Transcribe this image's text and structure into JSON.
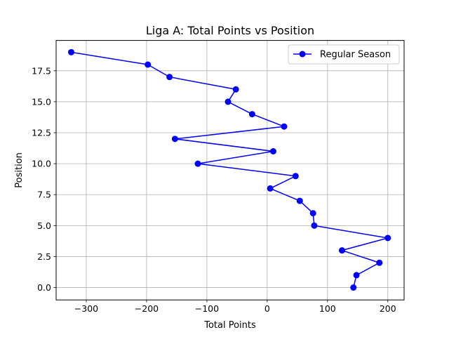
{
  "chart_data": {
    "type": "line",
    "title": "Liga A: Total Points vs Position",
    "xlabel": "Total Points",
    "ylabel": "Position",
    "xlim": [
      -350,
      227
    ],
    "ylim": [
      -1,
      19.95
    ],
    "xticks": [
      -300,
      -200,
      -100,
      0,
      100,
      200
    ],
    "xtick_labels": [
      "−300",
      "−200",
      "−100",
      "0",
      "100",
      "200"
    ],
    "yticks": [
      0.0,
      2.5,
      5.0,
      7.5,
      10.0,
      12.5,
      15.0,
      17.5
    ],
    "ytick_labels": [
      "0.0",
      "2.5",
      "5.0",
      "7.5",
      "10.0",
      "12.5",
      "15.0",
      "17.5"
    ],
    "grid": true,
    "legend_position": "top-right",
    "series": [
      {
        "name": "Regular Season",
        "color": "#0000ff",
        "marker": "circle",
        "x": [
          143,
          148,
          186,
          124,
          200,
          78,
          76,
          54,
          5,
          47,
          -115,
          10,
          -153,
          28,
          -25,
          -65,
          -52,
          -162,
          -198,
          -325
        ],
        "y": [
          0,
          1,
          2,
          3,
          4,
          5,
          6,
          7,
          8,
          9,
          10,
          11,
          12,
          13,
          14,
          15,
          16,
          17,
          18,
          19
        ]
      }
    ]
  }
}
